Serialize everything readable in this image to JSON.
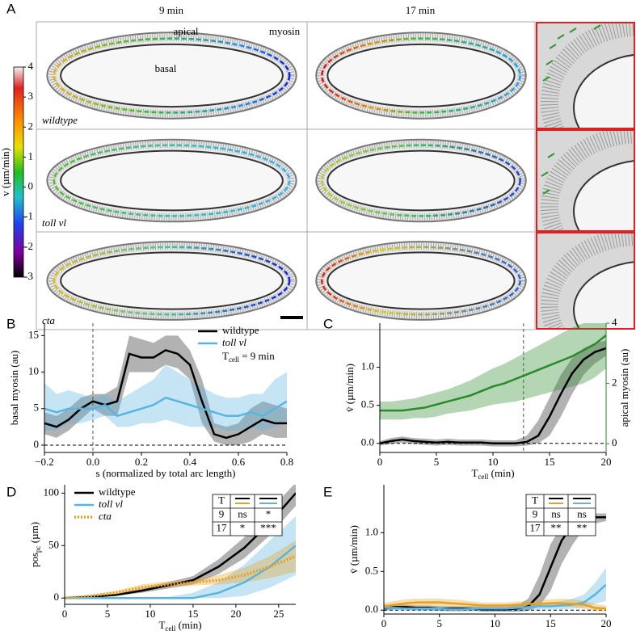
{
  "panel_a": {
    "label": "A",
    "columns": [
      "9 min",
      "17 min"
    ],
    "annotations": {
      "apical": "apical",
      "myosin": "myosin",
      "basal": "basal"
    },
    "rows": [
      "wildtype",
      "toll vl",
      "cta"
    ],
    "colorbar": {
      "label": "v (µm/min)",
      "ylim": [
        -3,
        4
      ],
      "yticks": [
        4,
        3,
        2,
        1,
        0,
        -1,
        -2,
        -3
      ]
    }
  },
  "chart_data": [
    {
      "type": "line",
      "panel": "B",
      "xlabel": "s (normalized by total arc length)",
      "ylabel": "basal myosin (au)",
      "annotation": [
        "T",
        "cell",
        " = 9 min"
      ],
      "xlim": [
        -0.2,
        0.8
      ],
      "ylim": [
        -1,
        16.7
      ],
      "xticks": [
        {
          "value": -0.2,
          "label": "−0.2"
        },
        {
          "value": 0,
          "label": "0.0"
        },
        {
          "value": 0.2,
          "label": "0.2"
        },
        {
          "value": 0.4,
          "label": "0.4"
        },
        {
          "value": 0.6,
          "label": "0.6"
        },
        {
          "value": 0.8,
          "label": "0.8"
        }
      ],
      "yticks": [
        0,
        5,
        10,
        15
      ],
      "reference_lines": {
        "x": [
          0
        ],
        "y": [
          0
        ]
      },
      "legend": "upper right",
      "x": [
        -0.2,
        -0.15,
        -0.1,
        -0.05,
        0,
        0.05,
        0.1,
        0.15,
        0.2,
        0.25,
        0.3,
        0.35,
        0.4,
        0.45,
        0.5,
        0.55,
        0.6,
        0.65,
        0.7,
        0.75,
        0.8
      ],
      "series": [
        {
          "name": "wildtype",
          "color": "#000000",
          "values": [
            3,
            2.5,
            3.5,
            5,
            6,
            5.5,
            6,
            12.5,
            12,
            12,
            13,
            12.5,
            11,
            6,
            1.5,
            1,
            1.5,
            2.5,
            3.5,
            3,
            3
          ],
          "lower": [
            1.5,
            1,
            2,
            3.5,
            5,
            4,
            4,
            10,
            10,
            10,
            11,
            10.5,
            9,
            3,
            0.5,
            0,
            0,
            0.5,
            1.5,
            1,
            1
          ],
          "upper": [
            4.5,
            4,
            5,
            6.5,
            7,
            7,
            8,
            15,
            14.5,
            14,
            15,
            15,
            13,
            9,
            3,
            2.5,
            3,
            5,
            6,
            5.5,
            5
          ]
        },
        {
          "name": "toll vl",
          "color": "#5ab4e0",
          "values": [
            5,
            4.5,
            5,
            5,
            5,
            5.5,
            4,
            4.5,
            5,
            5.5,
            6.5,
            6,
            5.5,
            5,
            4.5,
            4,
            4,
            4.5,
            4,
            5,
            6
          ],
          "lower": [
            2,
            2,
            3,
            3,
            3.5,
            4,
            2.5,
            2.5,
            3,
            3,
            3.5,
            3,
            2.5,
            2.5,
            2.5,
            2,
            2,
            2.5,
            2,
            2.5,
            3
          ],
          "upper": [
            8.5,
            7,
            7.5,
            7,
            6.5,
            7,
            6,
            7,
            8,
            9,
            11,
            10,
            9,
            8,
            7,
            6.5,
            6.5,
            7,
            7,
            9,
            10
          ]
        }
      ]
    },
    {
      "type": "line",
      "panel": "C",
      "xlabel": [
        "T",
        "cell",
        " (min)"
      ],
      "ylabel": "v̄ (µm/min)",
      "y2label": "apical myosin (au)",
      "y2color": "#2a8a2a",
      "xlim": [
        0,
        20
      ],
      "ylim": [
        -0.12,
        1.58
      ],
      "y2lim": [
        -0.29,
        4
      ],
      "xticks": [
        0,
        5,
        10,
        15,
        20
      ],
      "yticks": [
        {
          "value": 0,
          "label": "0.0"
        },
        {
          "value": 0.5,
          "label": "0.5"
        },
        {
          "value": 1,
          "label": "1.0"
        }
      ],
      "y2ticks": [
        0,
        2,
        4
      ],
      "reference_lines": {
        "x": [
          12.7
        ],
        "y": [
          0
        ]
      },
      "x": [
        0,
        1,
        2,
        3,
        4,
        5,
        6,
        7,
        8,
        9,
        10,
        11,
        12,
        13,
        14,
        15,
        16,
        17,
        18,
        19,
        20
      ],
      "series": [
        {
          "color": "#000000",
          "values": [
            0,
            0.03,
            0.05,
            0.03,
            0.02,
            0.01,
            0.02,
            0.01,
            0.01,
            0.01,
            0,
            0,
            0,
            0.02,
            0.1,
            0.35,
            0.65,
            0.92,
            1.1,
            1.2,
            1.25
          ],
          "lower": [
            -0.03,
            -0.01,
            0.01,
            -0.01,
            -0.02,
            -0.03,
            -0.02,
            -0.03,
            -0.03,
            -0.03,
            -0.04,
            -0.04,
            -0.04,
            -0.03,
            0,
            0.1,
            0.35,
            0.65,
            0.9,
            1.05,
            1.15
          ],
          "upper": [
            0.03,
            0.07,
            0.09,
            0.07,
            0.06,
            0.05,
            0.06,
            0.05,
            0.05,
            0.05,
            0.04,
            0.04,
            0.04,
            0.1,
            0.3,
            0.6,
            0.9,
            1.12,
            1.25,
            1.32,
            1.35
          ]
        },
        {
          "color": "#2a8a2a",
          "axis": "y2",
          "values": [
            1.1,
            1.1,
            1.1,
            1.15,
            1.2,
            1.3,
            1.4,
            1.5,
            1.6,
            1.75,
            1.9,
            2.0,
            2.15,
            2.3,
            2.45,
            2.6,
            2.75,
            2.9,
            3.1,
            3.3,
            3.6
          ],
          "lower": [
            0.8,
            0.8,
            0.8,
            0.85,
            0.85,
            0.9,
            1.0,
            1.05,
            1.1,
            1.2,
            1.3,
            1.35,
            1.4,
            1.5,
            1.6,
            1.7,
            1.8,
            1.9,
            2.0,
            2.2,
            2.5
          ],
          "upper": [
            1.4,
            1.4,
            1.45,
            1.5,
            1.6,
            1.7,
            1.8,
            1.95,
            2.1,
            2.3,
            2.5,
            2.65,
            2.85,
            3.05,
            3.25,
            3.45,
            3.65,
            3.85,
            4.0,
            4.0,
            4.0
          ]
        }
      ]
    },
    {
      "type": "line",
      "panel": "D",
      "xlabel": [
        "T",
        "cell",
        " (min)"
      ],
      "ylabel": [
        "pos",
        "pc",
        " (µm)"
      ],
      "xlim": [
        0,
        27
      ],
      "ylim": [
        -6,
        108
      ],
      "xticks": [
        0,
        5,
        10,
        15,
        20,
        25
      ],
      "yticks": [
        0,
        50,
        100
      ],
      "legend": "upper left",
      "table": {
        "header": "T",
        "pairs": [
          [
            0,
            2
          ],
          [
            0,
            1
          ]
        ],
        "rows": [
          [
            "9",
            "ns",
            "*"
          ],
          [
            "17",
            "*",
            "***"
          ]
        ]
      },
      "x": [
        0,
        3,
        6,
        9,
        12,
        15,
        18,
        21,
        24,
        27
      ],
      "series": [
        {
          "name": "wildtype",
          "color": "#000000",
          "values": [
            0,
            1,
            3,
            7,
            12,
            17,
            30,
            48,
            72,
            100
          ],
          "lower": [
            0,
            0.5,
            2,
            5,
            9,
            13,
            23,
            38,
            60,
            88
          ],
          "upper": [
            0,
            1.5,
            4,
            9,
            15,
            21,
            37,
            58,
            84,
            110
          ]
        },
        {
          "name": "toll vl",
          "color": "#5ab4e0",
          "values": [
            0,
            0,
            0,
            0,
            0,
            0,
            5,
            15,
            30,
            50
          ],
          "lower": [
            0,
            0,
            0,
            0,
            0,
            0,
            0,
            2,
            10,
            22
          ],
          "upper": [
            0,
            0,
            0,
            0,
            1,
            5,
            15,
            32,
            55,
            78
          ]
        },
        {
          "name": "cta",
          "color": "#e8a020",
          "linestyle": "dotted",
          "values": [
            0,
            2,
            5,
            10,
            13,
            15,
            17,
            22,
            30,
            40
          ],
          "lower": [
            0,
            1,
            3,
            7,
            10,
            12,
            13,
            15,
            19,
            25
          ],
          "upper": [
            0,
            3,
            7,
            13,
            16,
            18,
            22,
            29,
            40,
            55
          ]
        }
      ]
    },
    {
      "type": "line",
      "panel": "E",
      "xlabel": [
        "T",
        "cell",
        " (min)"
      ],
      "ylabel": "v̄ (µm/min)",
      "xlim": [
        0,
        20
      ],
      "ylim": [
        -0.05,
        1.62
      ],
      "xticks": [
        0,
        5,
        10,
        15,
        20
      ],
      "yticks": [
        {
          "value": 0,
          "label": "0.0"
        },
        {
          "value": 0.5,
          "label": "0.5"
        },
        {
          "value": 1,
          "label": "1.0"
        }
      ],
      "reference_lines": {
        "y": [
          0
        ]
      },
      "table": {
        "header": "T",
        "pairs": [
          [
            0,
            2
          ],
          [
            0,
            1
          ]
        ],
        "rows": [
          [
            "9",
            "ns",
            "ns"
          ],
          [
            "17",
            "**",
            "**"
          ]
        ]
      },
      "x": [
        0,
        1,
        2,
        3,
        4,
        5,
        6,
        7,
        8,
        9,
        10,
        11,
        12,
        13,
        14,
        15,
        16,
        17,
        18,
        19,
        20
      ],
      "series": [
        {
          "name": "wildtype",
          "color": "#000000",
          "values": [
            0.02,
            0.04,
            0.04,
            0.03,
            0.03,
            0.02,
            0.02,
            0.02,
            0.02,
            0.01,
            0.01,
            0.01,
            0.02,
            0.05,
            0.2,
            0.55,
            0.9,
            1.1,
            1.18,
            1.2,
            1.2
          ],
          "lower": [
            -0.01,
            0.01,
            0.01,
            0,
            0,
            -0.01,
            -0.01,
            -0.01,
            -0.01,
            -0.02,
            -0.02,
            -0.02,
            -0.02,
            -0.01,
            0.05,
            0.25,
            0.6,
            0.85,
            1.05,
            1.12,
            1.15
          ],
          "upper": [
            0.05,
            0.07,
            0.07,
            0.06,
            0.06,
            0.05,
            0.05,
            0.05,
            0.05,
            0.04,
            0.04,
            0.04,
            0.06,
            0.15,
            0.45,
            0.85,
            1.1,
            1.22,
            1.25,
            1.25,
            1.25
          ]
        },
        {
          "name": "toll vl",
          "color": "#5ab4e0",
          "values": [
            0.03,
            0.03,
            0.02,
            0.02,
            0.02,
            0.02,
            0.01,
            0.01,
            0.02,
            0.02,
            0.02,
            0.02,
            0.03,
            0.04,
            0.05,
            0.05,
            0.06,
            0.07,
            0.1,
            0.2,
            0.33
          ],
          "lower": [
            0,
            0,
            -0.01,
            -0.01,
            -0.01,
            -0.01,
            -0.02,
            -0.02,
            -0.01,
            -0.01,
            -0.01,
            -0.01,
            0,
            0,
            0.01,
            0.01,
            0.01,
            0.02,
            0.03,
            0.08,
            0.12
          ],
          "upper": [
            0.06,
            0.06,
            0.05,
            0.05,
            0.05,
            0.05,
            0.04,
            0.04,
            0.05,
            0.05,
            0.05,
            0.05,
            0.06,
            0.08,
            0.09,
            0.1,
            0.12,
            0.15,
            0.2,
            0.35,
            0.55
          ]
        },
        {
          "name": "cta",
          "color": "#e8a020",
          "values": [
            0.05,
            0.07,
            0.09,
            0.1,
            0.1,
            0.1,
            0.09,
            0.08,
            0.07,
            0.06,
            0.06,
            0.06,
            0.07,
            0.08,
            0.08,
            0.09,
            0.09,
            0.08,
            0.07,
            0.03,
            0.02
          ],
          "lower": [
            0.01,
            0.03,
            0.04,
            0.05,
            0.05,
            0.05,
            0.04,
            0.04,
            0.03,
            0.02,
            0.02,
            0.02,
            0.03,
            0.04,
            0.04,
            0.05,
            0.05,
            0.04,
            0.02,
            -0.01,
            -0.02
          ],
          "upper": [
            0.09,
            0.12,
            0.14,
            0.15,
            0.15,
            0.15,
            0.14,
            0.13,
            0.11,
            0.1,
            0.1,
            0.1,
            0.11,
            0.12,
            0.13,
            0.14,
            0.15,
            0.14,
            0.12,
            0.08,
            0.06
          ]
        }
      ]
    }
  ]
}
